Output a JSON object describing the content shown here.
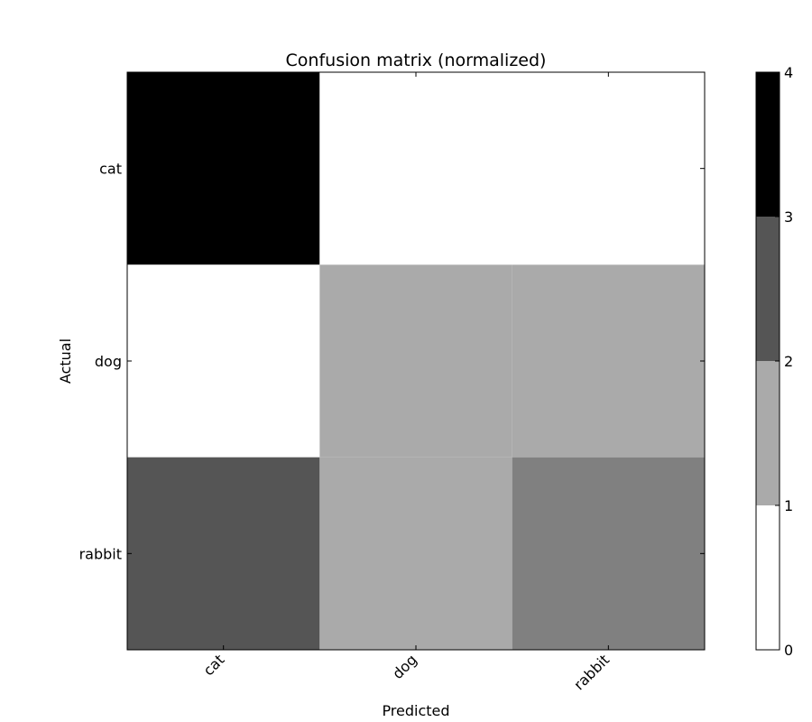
{
  "chart_data": {
    "type": "heatmap",
    "title": "Confusion matrix (normalized)",
    "xlabel": "Predicted",
    "ylabel": "Actual",
    "x_categories": [
      "cat",
      "dog",
      "rabbit"
    ],
    "y_categories": [
      "cat",
      "dog",
      "rabbit"
    ],
    "values": [
      [
        4,
        0,
        0
      ],
      [
        0,
        2,
        2
      ],
      [
        3,
        2,
        2.5
      ]
    ],
    "colorbar": {
      "range": [
        0,
        4
      ],
      "ticks": [
        0,
        1,
        2,
        3,
        4
      ],
      "tick_labels": [
        "0",
        "1",
        "2",
        "3",
        "4"
      ],
      "levels": [
        {
          "from": 0,
          "to": 1,
          "color": "#ffffff"
        },
        {
          "from": 1,
          "to": 2,
          "color": "#aaaaaa"
        },
        {
          "from": 2,
          "to": 3,
          "color": "#555555"
        },
        {
          "from": 3,
          "to": 4,
          "color": "#000000"
        }
      ]
    },
    "cell_colors": [
      [
        "#000000",
        "#ffffff",
        "#ffffff"
      ],
      [
        "#ffffff",
        "#aaaaaa",
        "#aaaaaa"
      ],
      [
        "#555555",
        "#aaaaaa",
        "#808080"
      ]
    ],
    "colormap": "grayscale (reversed)",
    "grid": false
  }
}
